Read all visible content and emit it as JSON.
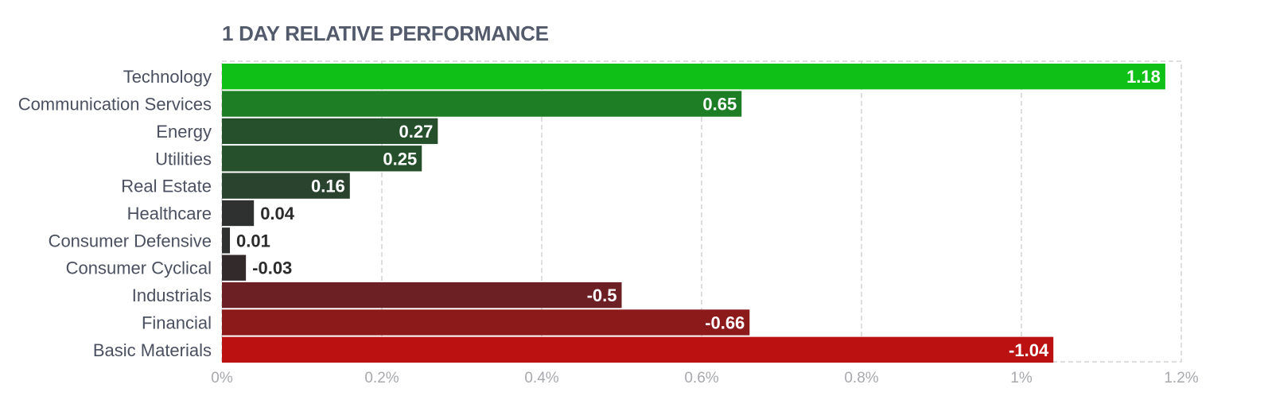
{
  "chart_data": {
    "type": "bar",
    "orientation": "horizontal",
    "title": "1 DAY RELATIVE PERFORMANCE",
    "categories": [
      "Technology",
      "Communication Services",
      "Energy",
      "Utilities",
      "Real Estate",
      "Healthcare",
      "Consumer Defensive",
      "Consumer Cyclical",
      "Industrials",
      "Financial",
      "Basic Materials"
    ],
    "values": [
      1.18,
      0.65,
      0.27,
      0.25,
      0.16,
      0.04,
      0.01,
      -0.03,
      -0.5,
      -0.66,
      -1.04
    ],
    "value_labels": [
      "1.18",
      "0.65",
      "0.27",
      "0.25",
      "0.16",
      "0.04",
      "0.01",
      "-0.03",
      "-0.5",
      "-0.66",
      "-1.04"
    ],
    "bar_length": "absolute value",
    "colors": [
      "#0fc116",
      "#1d7e25",
      "#264f2c",
      "#264f2c",
      "#2a432e",
      "#2f3030",
      "#2f3030",
      "#332a2c",
      "#6d2023",
      "#8c1a1b",
      "#bb1111"
    ],
    "x_ticks": [
      "0%",
      "0.2%",
      "0.4%",
      "0.6%",
      "0.8%",
      "1%",
      "1.2%"
    ],
    "tick_values": [
      0,
      0.2,
      0.4,
      0.6,
      0.8,
      1.0,
      1.2
    ],
    "xlim": [
      0,
      1.2
    ],
    "grid": true,
    "grid_style": "dashed",
    "legend": "none"
  }
}
